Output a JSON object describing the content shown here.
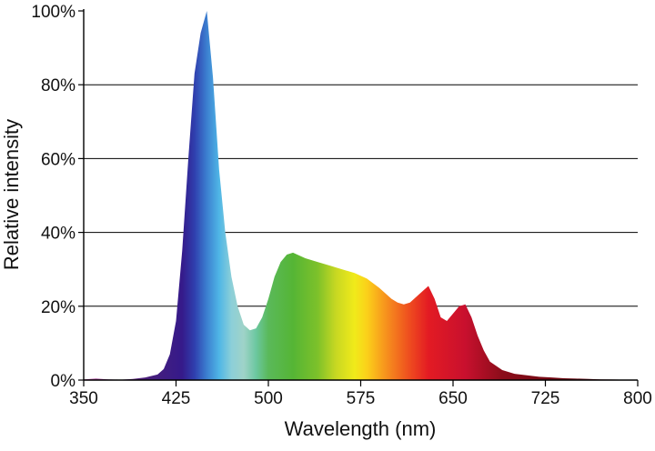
{
  "chart_data": {
    "type": "area",
    "title": "",
    "xlabel": "Wavelength (nm)",
    "ylabel": "Relative intensity",
    "xlim": [
      350,
      800
    ],
    "ylim": [
      0,
      100
    ],
    "x_ticks": [
      350,
      425,
      500,
      575,
      650,
      725,
      800
    ],
    "y_ticks": [
      0,
      20,
      40,
      60,
      80,
      100
    ],
    "x_tick_labels": [
      "350",
      "425",
      "500",
      "575",
      "650",
      "725",
      "800"
    ],
    "y_tick_labels": [
      "0%",
      "20%",
      "40%",
      "60%",
      "80%",
      "100%"
    ],
    "grid": "horizontal",
    "series": [
      {
        "x": [
          350,
          360,
          370,
          380,
          390,
          400,
          410,
          415,
          420,
          425,
          430,
          435,
          440,
          445,
          450,
          455,
          460,
          465,
          470,
          475,
          480,
          485,
          490,
          495,
          500,
          505,
          510,
          515,
          520,
          530,
          540,
          550,
          560,
          570,
          580,
          590,
          600,
          605,
          610,
          615,
          620,
          625,
          630,
          635,
          640,
          645,
          650,
          655,
          660,
          665,
          670,
          675,
          680,
          690,
          700,
          710,
          720,
          730,
          740,
          750,
          760,
          770,
          780,
          790,
          800
        ],
        "values": [
          0.2,
          0.4,
          0.2,
          0.1,
          0.3,
          0.7,
          1.5,
          3,
          7,
          16,
          35,
          60,
          83,
          94,
          100,
          82,
          57,
          40,
          28,
          20,
          15,
          13.5,
          14,
          17,
          22,
          28,
          32,
          34,
          34.5,
          33,
          32,
          31,
          30,
          29,
          27.5,
          25,
          22,
          21,
          20.5,
          21,
          22.5,
          24,
          25.5,
          22,
          17,
          16,
          18,
          20,
          20.5,
          17,
          12,
          8,
          5,
          2.7,
          1.7,
          1.3,
          0.9,
          0.7,
          0.5,
          0.4,
          0.3,
          0.2,
          0.15,
          0.1,
          0.1
        ]
      }
    ],
    "spectrum_colors": [
      {
        "nm": 350,
        "color": "#b43c96"
      },
      {
        "nm": 400,
        "color": "#4a1f7a"
      },
      {
        "nm": 430,
        "color": "#351a8a"
      },
      {
        "nm": 440,
        "color": "#2f3fae"
      },
      {
        "nm": 450,
        "color": "#3c7fd0"
      },
      {
        "nm": 460,
        "color": "#4fb6e6"
      },
      {
        "nm": 470,
        "color": "#8ccfd8"
      },
      {
        "nm": 480,
        "color": "#9fd3c8"
      },
      {
        "nm": 490,
        "color": "#6cc7a0"
      },
      {
        "nm": 500,
        "color": "#5ab95a"
      },
      {
        "nm": 520,
        "color": "#55b535"
      },
      {
        "nm": 540,
        "color": "#7dc12a"
      },
      {
        "nm": 555,
        "color": "#c8d822"
      },
      {
        "nm": 570,
        "color": "#f0ea1a"
      },
      {
        "nm": 580,
        "color": "#fbd11a"
      },
      {
        "nm": 595,
        "color": "#f7941d"
      },
      {
        "nm": 615,
        "color": "#ee4b1f"
      },
      {
        "nm": 630,
        "color": "#e31b23"
      },
      {
        "nm": 660,
        "color": "#c8102e"
      },
      {
        "nm": 690,
        "color": "#8b0d1a"
      },
      {
        "nm": 800,
        "color": "#4a0008"
      }
    ],
    "grid_color": "#000000",
    "axis_color": "#000000"
  }
}
